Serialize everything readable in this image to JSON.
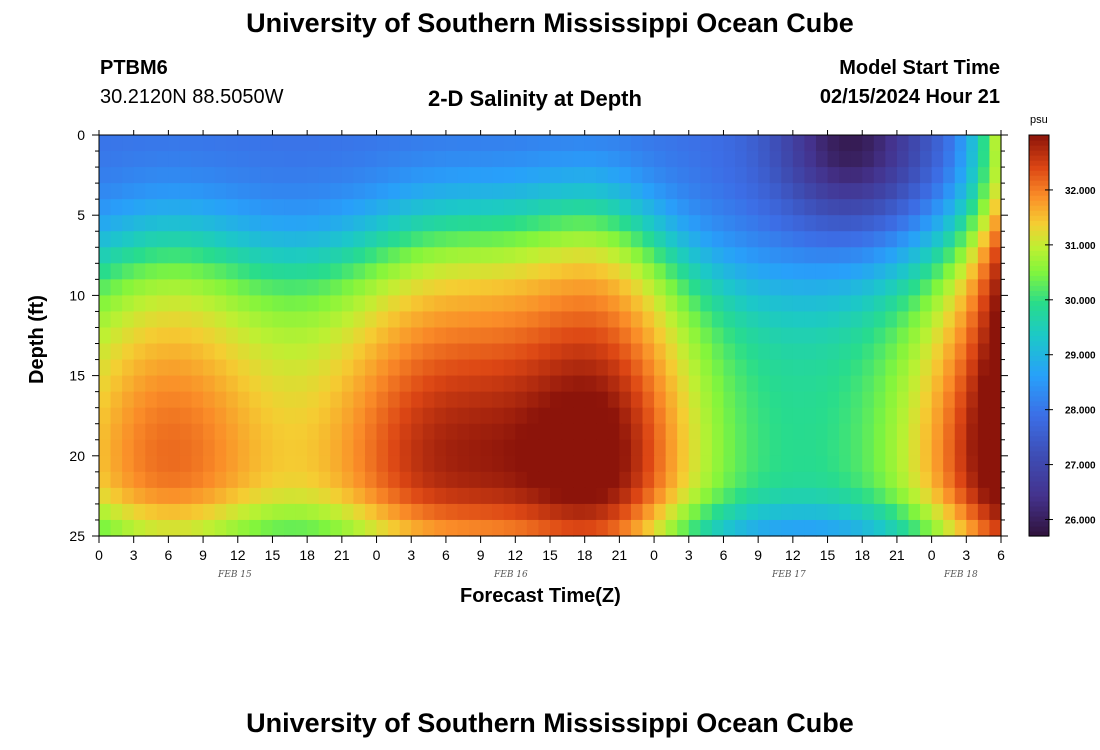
{
  "header": {
    "title": "University of Southern Mississippi Ocean Cube",
    "station_id": "PTBM6",
    "coordinates": "30.2120N  88.5050W",
    "subtitle": "2-D Salinity at Depth",
    "model_start_label": "Model Start Time",
    "model_start_value": "02/15/2024 Hour 21"
  },
  "footer": {
    "title": "University of Southern Mississippi Ocean Cube"
  },
  "chart_data": {
    "type": "heatmap",
    "title": "2-D Salinity at Depth",
    "xlabel": "Forecast Time(Z)",
    "ylabel": "Depth (ft)",
    "x_tick_labels": [
      "0",
      "3",
      "6",
      "9",
      "12",
      "15",
      "18",
      "21",
      "0",
      "3",
      "6",
      "9",
      "12",
      "15",
      "18",
      "21",
      "0",
      "3",
      "6",
      "9",
      "12",
      "15",
      "18",
      "21",
      "0",
      "3",
      "6"
    ],
    "x_range_hours": [
      0,
      78
    ],
    "date_labels": [
      {
        "text": "FEB 15",
        "hour": 12
      },
      {
        "text": "FEB 16",
        "hour": 36
      },
      {
        "text": "FEB 17",
        "hour": 60
      },
      {
        "text": "FEB 18",
        "hour": 75
      }
    ],
    "y_tick_labels": [
      "0",
      "5",
      "10",
      "15",
      "20",
      "25"
    ],
    "y_range_ft": [
      0,
      25
    ],
    "colorbar": {
      "unit": "psu",
      "range": [
        25.7,
        33.0
      ],
      "tick_labels": [
        "26.000",
        "27.000",
        "28.000",
        "29.000",
        "30.000",
        "31.000",
        "32.000"
      ],
      "tick_values": [
        26,
        27,
        28,
        29,
        30,
        31,
        32
      ]
    },
    "grid": "off",
    "field_description_hotspots": [
      {
        "hour": 6,
        "depth_ft": 19.5,
        "value": 32.9
      },
      {
        "hour": 18,
        "depth_ft": 21,
        "value": 32.8
      },
      {
        "hour": 42,
        "depth_ft": 21,
        "value": 32.8
      },
      {
        "hour": 76,
        "depth_ft": 19,
        "value": 33.0
      },
      {
        "hour": 65,
        "depth_ft": 1,
        "value": 25.8
      }
    ]
  }
}
